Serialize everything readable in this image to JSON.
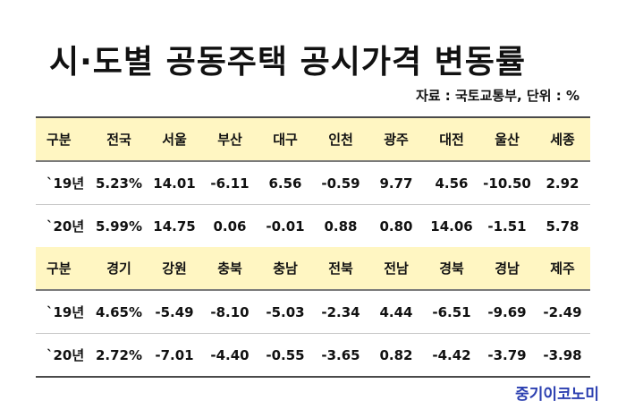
{
  "title": "시·도별 공동주택 공시가격 변동률",
  "source": "자료 : 국토교통부, 단위 : %",
  "table1": {
    "header": [
      "구분",
      "전국",
      "서울",
      "부산",
      "대구",
      "인천",
      "광주",
      "대전",
      "울산",
      "세종"
    ],
    "rows": [
      [
        "`19년",
        "5.23%",
        "14.01",
        "-6.11",
        "6.56",
        "-0.59",
        "9.77",
        "4.56",
        "-10.50",
        "2.92"
      ],
      [
        "`20년",
        "5.99%",
        "14.75",
        "0.06",
        "-0.01",
        "0.88",
        "0.80",
        "14.06",
        "-1.51",
        "5.78"
      ]
    ]
  },
  "table2": {
    "header": [
      "구분",
      "경기",
      "강원",
      "충북",
      "충남",
      "전북",
      "전남",
      "경북",
      "경남",
      "제주"
    ],
    "rows": [
      [
        "`19년",
        "4.65%",
        "-5.49",
        "-8.10",
        "-5.03",
        "-2.34",
        "4.44",
        "-6.51",
        "-9.69",
        "-2.49"
      ],
      [
        "`20년",
        "2.72%",
        "-7.01",
        "-4.40",
        "-0.55",
        "-3.65",
        "0.82",
        "-4.42",
        "-3.79",
        "-3.98"
      ]
    ]
  },
  "colors": {
    "header_bg": "#fff6c2",
    "brand": "#2b3fb0"
  },
  "brand": "중기이코노미"
}
